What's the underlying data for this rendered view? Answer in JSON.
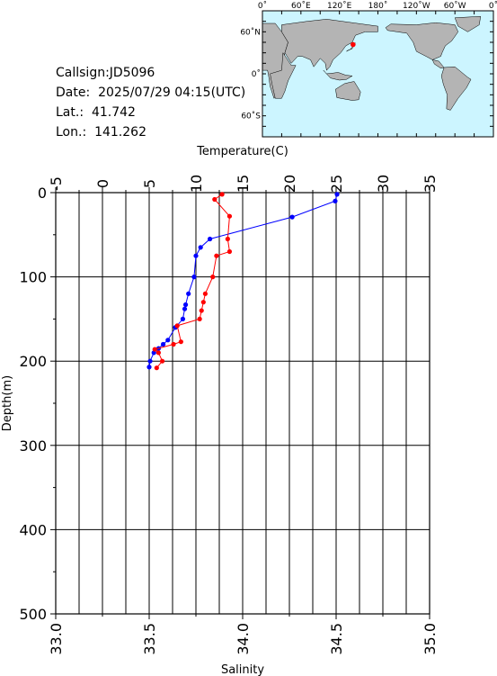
{
  "header": {
    "callsign_label": "Callsign:",
    "callsign": "JD5096",
    "date_label": "Date:",
    "date": "2025/07/29 04:15(UTC)",
    "lat_label": "Lat.:",
    "lat": "41.742",
    "lon_label": "Lon.:",
    "lon": "141.262"
  },
  "map": {
    "lon_ticks": [
      "0˚",
      "60˚E",
      "120˚E",
      "180˚",
      "120˚W",
      "60˚W",
      "0˚"
    ],
    "lat_ticks": [
      "60˚N",
      "0˚",
      "60˚S"
    ],
    "ocean_color": "#ccf5ff",
    "land_color": "#b4b4b4",
    "station_marker_color": "#ff0000",
    "station": {
      "lon": 141.262,
      "lat": 41.742
    }
  },
  "chart_data": {
    "type": "line",
    "x_top_label": "Temperature(C)",
    "x_bottom_label": "Salinity",
    "y_label": "Depth(m)",
    "temperature_ticks": [
      "-5",
      "0",
      "5",
      "10",
      "15",
      "20",
      "25",
      "30",
      "35"
    ],
    "salinity_ticks": [
      "33.0",
      "33.5",
      "34.0",
      "34.5",
      "35.0"
    ],
    "depth_ticks": [
      "0",
      "100",
      "200",
      "300",
      "400",
      "500"
    ],
    "temperature_range": [
      -5,
      35
    ],
    "salinity_range": [
      33.0,
      35.0
    ],
    "depth_range": [
      0,
      500
    ],
    "grid": true,
    "series": [
      {
        "quantity": "temperature",
        "color": "#0000ff",
        "points": [
          {
            "value": 25.1,
            "depth": 2
          },
          {
            "value": 24.9,
            "depth": 10
          },
          {
            "value": 20.3,
            "depth": 29
          },
          {
            "value": 11.5,
            "depth": 55
          },
          {
            "value": 10.5,
            "depth": 65
          },
          {
            "value": 10.0,
            "depth": 75
          },
          {
            "value": 9.8,
            "depth": 100
          },
          {
            "value": 9.2,
            "depth": 120
          },
          {
            "value": 8.9,
            "depth": 133
          },
          {
            "value": 8.8,
            "depth": 138
          },
          {
            "value": 8.6,
            "depth": 150
          },
          {
            "value": 7.8,
            "depth": 160
          },
          {
            "value": 7.0,
            "depth": 175
          },
          {
            "value": 6.5,
            "depth": 180
          },
          {
            "value": 6.0,
            "depth": 185
          },
          {
            "value": 5.5,
            "depth": 190
          },
          {
            "value": 5.1,
            "depth": 200
          },
          {
            "value": 5.0,
            "depth": 207
          }
        ]
      },
      {
        "quantity": "salinity",
        "color": "#ff0000",
        "points": [
          {
            "value": 33.89,
            "depth": 2
          },
          {
            "value": 33.85,
            "depth": 8
          },
          {
            "value": 33.93,
            "depth": 28
          },
          {
            "value": 33.92,
            "depth": 55
          },
          {
            "value": 33.93,
            "depth": 70
          },
          {
            "value": 33.86,
            "depth": 75
          },
          {
            "value": 33.84,
            "depth": 100
          },
          {
            "value": 33.8,
            "depth": 120
          },
          {
            "value": 33.79,
            "depth": 130
          },
          {
            "value": 33.78,
            "depth": 140
          },
          {
            "value": 33.77,
            "depth": 150
          },
          {
            "value": 33.65,
            "depth": 158
          },
          {
            "value": 33.67,
            "depth": 177
          },
          {
            "value": 33.63,
            "depth": 180
          },
          {
            "value": 33.53,
            "depth": 186
          },
          {
            "value": 33.55,
            "depth": 190
          },
          {
            "value": 33.57,
            "depth": 200
          },
          {
            "value": 33.54,
            "depth": 208
          }
        ]
      }
    ]
  }
}
